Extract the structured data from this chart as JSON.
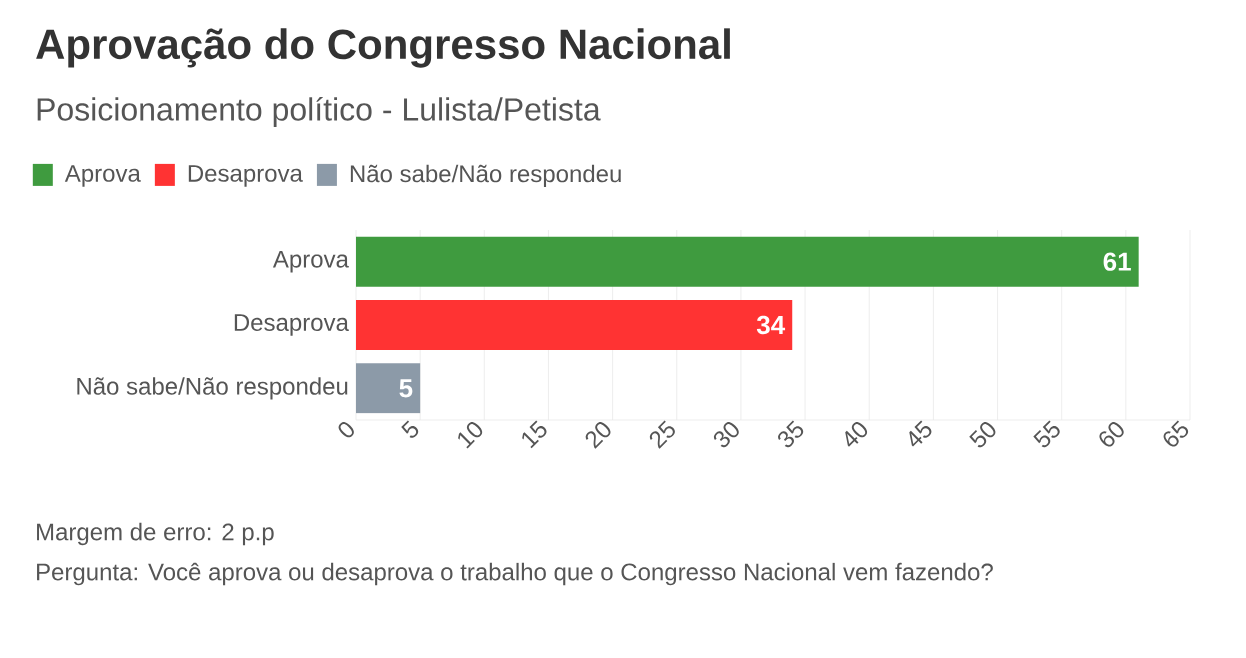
{
  "chart_data": {
    "type": "bar",
    "orientation": "horizontal",
    "title": "Aprovação do Congresso Nacional",
    "subtitle": "Posicionamento político - Lulista/Petista",
    "categories": [
      "Aprova",
      "Desaprova",
      "Não sabe/Não respondeu"
    ],
    "series": [
      {
        "name": "Aprova",
        "color": "#3f9b3f",
        "values": [
          61,
          null,
          null
        ]
      },
      {
        "name": "Desaprova",
        "color": "#ff3333",
        "values": [
          null,
          34,
          null
        ]
      },
      {
        "name": "Não sabe/Não respondeu",
        "color": "#8c9aa8",
        "values": [
          null,
          null,
          5
        ]
      }
    ],
    "stacked": true,
    "xlim": [
      0,
      65
    ],
    "xticks": [
      0,
      5,
      10,
      15,
      20,
      25,
      30,
      35,
      40,
      45,
      50,
      55,
      60,
      65
    ],
    "grid": "x",
    "legend": "top left",
    "data_labels": true,
    "annotations": [
      "Margem de erro: 2 p.p",
      "Pergunta: Você aprova ou desaprova o trabalho que o Congresso Nacional vem fazendo?"
    ]
  }
}
